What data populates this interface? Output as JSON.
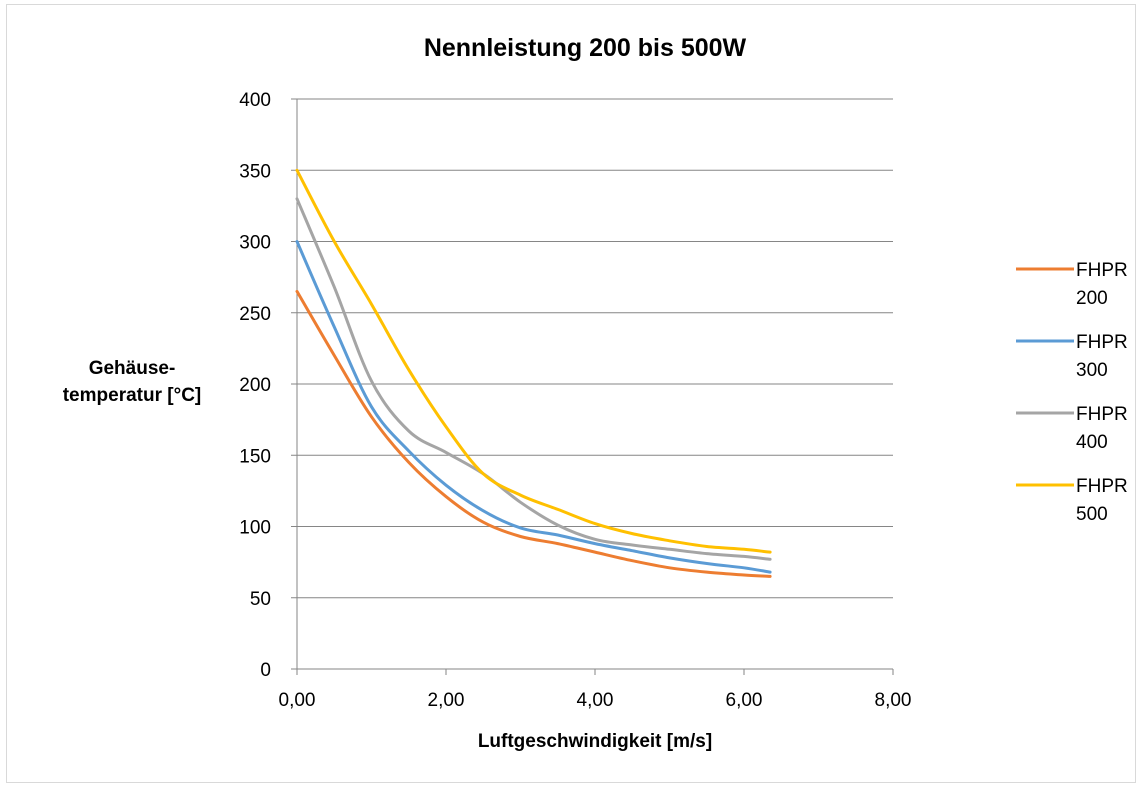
{
  "chart_data": {
    "type": "line",
    "title": "Nennleistung 200 bis 500W",
    "xlabel": "Luftgeschwindigkeit [m/s]",
    "ylabel_lines": [
      "Gehäuse-",
      "temperatur [°C]"
    ],
    "xlim": [
      0,
      8
    ],
    "ylim": [
      0,
      400
    ],
    "x_ticks": [
      0,
      2,
      4,
      6,
      8
    ],
    "x_tick_labels": [
      "0,00",
      "2,00",
      "4,00",
      "6,00",
      "8,00"
    ],
    "y_ticks": [
      0,
      50,
      100,
      150,
      200,
      250,
      300,
      350,
      400
    ],
    "y_tick_labels": [
      "0",
      "50",
      "100",
      "150",
      "200",
      "250",
      "300",
      "350",
      "400"
    ],
    "grid": "horizontal",
    "legend_position": "right",
    "series": [
      {
        "name_lines": [
          "FHPR",
          "200"
        ],
        "color": "#ED7D31",
        "x": [
          0,
          0.5,
          1,
          1.5,
          2,
          2.5,
          3,
          3.5,
          4,
          4.5,
          5,
          5.5,
          6,
          6.35
        ],
        "y": [
          265,
          220,
          177,
          145,
          121,
          103,
          93,
          88,
          82,
          76,
          71,
          68,
          66,
          65
        ]
      },
      {
        "name_lines": [
          "FHPR",
          "300"
        ],
        "color": "#5B9BD5",
        "x": [
          0,
          0.5,
          1,
          1.5,
          2,
          2.5,
          3,
          3.5,
          4,
          4.5,
          5,
          5.5,
          6,
          6.35
        ],
        "y": [
          300,
          240,
          184,
          153,
          129,
          111,
          99,
          94,
          88,
          83,
          78,
          74,
          71,
          68
        ]
      },
      {
        "name_lines": [
          "FHPR",
          "400"
        ],
        "color": "#A5A5A5",
        "x": [
          0,
          0.5,
          1,
          1.5,
          2,
          2.5,
          3,
          3.5,
          4,
          4.5,
          5,
          5.5,
          6,
          6.35
        ],
        "y": [
          330,
          268,
          202,
          167,
          152,
          137,
          117,
          101,
          91,
          87,
          84,
          81,
          79,
          77
        ]
      },
      {
        "name_lines": [
          "FHPR",
          "500"
        ],
        "color": "#FFC000",
        "x": [
          0,
          0.5,
          1,
          1.5,
          2,
          2.5,
          3,
          3.5,
          4,
          4.5,
          5,
          5.5,
          6,
          6.35
        ],
        "y": [
          350,
          300,
          256,
          210,
          170,
          137,
          122,
          112,
          102,
          95,
          90,
          86,
          84,
          82
        ]
      }
    ]
  }
}
